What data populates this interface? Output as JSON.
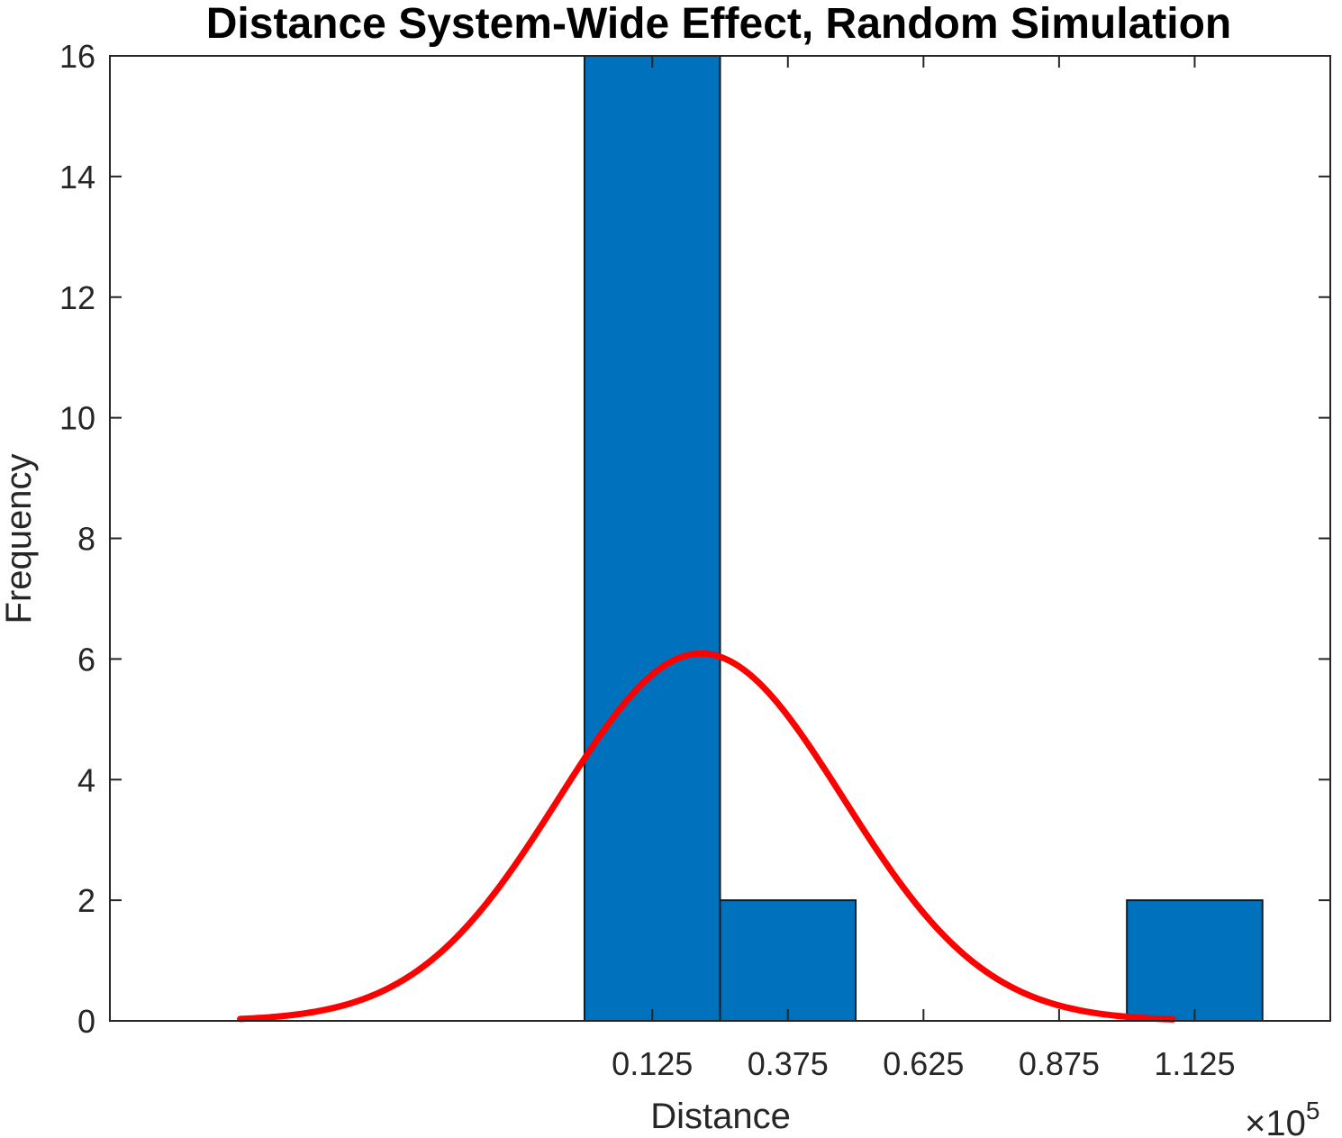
{
  "chart_data": {
    "type": "bar",
    "title": "Distance System-Wide Effect, Random Simulation",
    "xlabel": "Distance",
    "ylabel": "Frequency",
    "x_exponent_label": "×10",
    "x_exponent_power": "5",
    "x_multiplier": 100000,
    "xlim": [
      -0.875,
      1.375
    ],
    "ylim": [
      0,
      16
    ],
    "xticks": [
      0.125,
      0.375,
      0.625,
      0.875,
      1.125
    ],
    "xtick_labels": [
      "0.125",
      "0.375",
      "0.625",
      "0.875",
      "1.125"
    ],
    "yticks": [
      0,
      2,
      4,
      6,
      8,
      10,
      12,
      14,
      16
    ],
    "ytick_labels": [
      "0",
      "2",
      "4",
      "6",
      "8",
      "10",
      "12",
      "14",
      "16"
    ],
    "bin_width": 0.25,
    "bins": [
      {
        "center": 0.125,
        "count": 16
      },
      {
        "center": 0.375,
        "count": 2
      },
      {
        "center": 0.625,
        "count": 0
      },
      {
        "center": 0.875,
        "count": 0
      },
      {
        "center": 1.125,
        "count": 2
      }
    ],
    "fit_curve": {
      "type": "normal",
      "mean": 0.215,
      "sigma": 0.262,
      "scale": 4.0,
      "x_range": [
        -0.635,
        1.085
      ]
    },
    "grid": false,
    "colors": {
      "bar_fill": "#0072BD",
      "bar_edge": "#1a1a1a",
      "fit_line": "#FF0000",
      "axes": "#262626"
    }
  }
}
